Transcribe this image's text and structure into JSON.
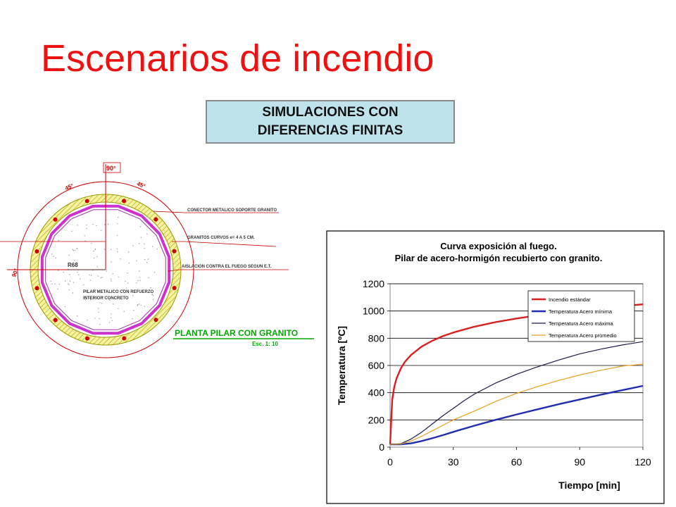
{
  "slide": {
    "title": "Escenarios de incendio",
    "box_line1": "SIMULACIONES CON",
    "box_line2": "DIFERENCIAS FINITAS"
  },
  "drawing": {
    "angle_top": "90°",
    "angle_left_top": "45°",
    "angle_right_top": "45°",
    "angle_left": "90°",
    "radius_label": "R68",
    "inner_label_1": "PILAR METALICO CON REFUERZO",
    "inner_label_2": "INTERIOR CONCRETO",
    "callout_1": "CONECTOR METALICO SOPORTE GRANITO",
    "callout_2": "GRANITOS CURVOS e= 4 A 5 CM.",
    "callout_3": "AISLACION CONTRA EL FUEGO SEGUN E.T.",
    "plan_title": "PLANTA PILAR CON GRANITO",
    "plan_scale": "Esc. 1: 10",
    "colors": {
      "column": "#cc33cc",
      "granite": "#e6e600",
      "dims": "#cc0000",
      "plan_title": "#00aa00"
    }
  },
  "chart_data": {
    "type": "line",
    "title_line1": "Curva exposición al fuego.",
    "title_line2": "Pilar de acero-hormigón recubierto con granito.",
    "xlabel": "Tiempo [min]",
    "ylabel": "Temperatura [ºC]",
    "xlim": [
      0,
      120
    ],
    "ylim": [
      0,
      1200
    ],
    "xticks": [
      0,
      30,
      60,
      90,
      120
    ],
    "yticks": [
      0,
      200,
      400,
      600,
      800,
      1000,
      1200
    ],
    "grid": "horizontal",
    "legend_position": "top-right",
    "series": [
      {
        "name": "Incendio estándar",
        "color": "#d81e1e",
        "width": 2.4,
        "x": [
          0,
          1,
          2,
          3,
          5,
          7,
          10,
          15,
          20,
          25,
          30,
          40,
          50,
          60,
          70,
          80,
          90,
          100,
          110,
          120
        ],
        "y": [
          20,
          349,
          445,
          502,
          576,
          626,
          678,
          739,
          781,
          815,
          842,
          885,
          918,
          945,
          968,
          988,
          1006,
          1022,
          1036,
          1049
        ]
      },
      {
        "name": "Temperatura Acero mínima",
        "color": "#1f2fb0",
        "width": 2.4,
        "x": [
          0,
          5,
          10,
          15,
          20,
          25,
          30,
          40,
          50,
          60,
          70,
          80,
          90,
          100,
          110,
          120
        ],
        "y": [
          20,
          20,
          28,
          45,
          65,
          88,
          112,
          158,
          200,
          240,
          278,
          315,
          350,
          385,
          418,
          450
        ]
      },
      {
        "name": "Temperatura Acero máxima",
        "color": "#1a1a4a",
        "width": 1.2,
        "x": [
          0,
          5,
          10,
          15,
          20,
          25,
          30,
          35,
          40,
          50,
          60,
          70,
          80,
          90,
          100,
          110,
          120
        ],
        "y": [
          20,
          25,
          60,
          110,
          170,
          230,
          285,
          340,
          390,
          470,
          535,
          590,
          640,
          685,
          720,
          750,
          775
        ]
      },
      {
        "name": "Temperatura Acero promedio",
        "color": "#e8a020",
        "width": 1.2,
        "x": [
          0,
          5,
          10,
          15,
          20,
          25,
          30,
          40,
          50,
          60,
          70,
          80,
          90,
          100,
          110,
          120
        ],
        "y": [
          20,
          22,
          45,
          80,
          120,
          160,
          200,
          265,
          335,
          395,
          445,
          490,
          530,
          565,
          595,
          610
        ]
      }
    ]
  }
}
